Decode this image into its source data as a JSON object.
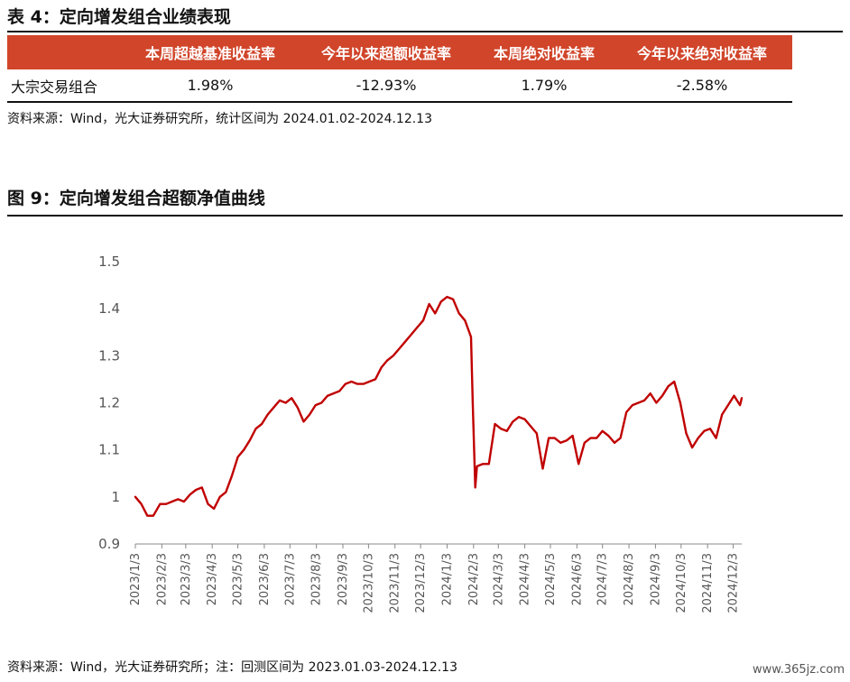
{
  "table": {
    "title": "表 4：定向增发组合业绩表现",
    "headers": [
      "",
      "本周超越基准收益率",
      "今年以来超额收益率",
      "本周绝对收益率",
      "今年以来绝对收益率"
    ],
    "rows": [
      [
        "大宗交易组合",
        "1.98%",
        "-12.93%",
        "1.79%",
        "-2.58%"
      ]
    ],
    "source": "资料来源：Wind，光大证券研究所，统计区间为 2024.01.02-2024.12.13"
  },
  "figure": {
    "title": "图 9：定向增发组合超额净值曲线",
    "source": "资料来源：Wind，光大证券研究所；注：回测区间为 2023.01.03-2024.12.13"
  },
  "watermark": "www.365jz.com",
  "colors": {
    "header_bg": "#d1452a",
    "line": "#c00000",
    "axis": "#888888"
  },
  "chart_data": {
    "type": "line",
    "title": "",
    "xlabel": "",
    "ylabel": "",
    "ylim": [
      0.9,
      1.5
    ],
    "yticks": [
      0.9,
      1,
      1.1,
      1.2,
      1.3,
      1.4,
      1.5
    ],
    "ytick_labels": [
      "0.9",
      "1",
      "1.1",
      "1.2",
      "1.3",
      "1.4",
      "1.5"
    ],
    "x_tick_labels": [
      "2023/1/3",
      "2023/2/3",
      "2023/3/3",
      "2023/4/3",
      "2023/5/3",
      "2023/6/3",
      "2023/7/3",
      "2023/8/3",
      "2023/9/3",
      "2023/10/3",
      "2023/11/3",
      "2023/12/3",
      "2024/1/3",
      "2024/2/3",
      "2024/3/3",
      "2024/4/3",
      "2024/5/3",
      "2024/6/3",
      "2024/7/3",
      "2024/8/3",
      "2024/9/3",
      "2024/10/3",
      "2024/11/3",
      "2024/12/3"
    ],
    "grid": false,
    "series": [
      {
        "x": [
          "2023/1/3",
          "2023/1/10",
          "2023/1/17",
          "2023/1/24",
          "2023/2/1",
          "2023/2/8",
          "2023/2/15",
          "2023/2/22",
          "2023/3/1",
          "2023/3/8",
          "2023/3/15",
          "2023/3/22",
          "2023/3/29",
          "2023/4/5",
          "2023/4/12",
          "2023/4/19",
          "2023/4/26",
          "2023/5/3",
          "2023/5/10",
          "2023/5/17",
          "2023/5/24",
          "2023/5/31",
          "2023/6/7",
          "2023/6/14",
          "2023/6/21",
          "2023/6/28",
          "2023/7/5",
          "2023/7/12",
          "2023/7/19",
          "2023/7/26",
          "2023/8/2",
          "2023/8/9",
          "2023/8/16",
          "2023/8/23",
          "2023/8/30",
          "2023/9/6",
          "2023/9/13",
          "2023/9/20",
          "2023/9/27",
          "2023/10/4",
          "2023/10/11",
          "2023/10/18",
          "2023/10/25",
          "2023/11/1",
          "2023/11/8",
          "2023/11/15",
          "2023/11/22",
          "2023/11/29",
          "2023/12/6",
          "2023/12/13",
          "2023/12/20",
          "2023/12/27",
          "2024/1/3",
          "2024/1/10",
          "2024/1/17",
          "2024/1/24",
          "2024/1/31",
          "2024/2/2",
          "2024/2/5",
          "2024/2/7",
          "2024/2/14",
          "2024/2/21",
          "2024/2/28",
          "2024/3/6",
          "2024/3/13",
          "2024/3/20",
          "2024/3/27",
          "2024/4/3",
          "2024/4/10",
          "2024/4/17",
          "2024/4/24",
          "2024/5/1",
          "2024/5/8",
          "2024/5/15",
          "2024/5/22",
          "2024/5/29",
          "2024/6/5",
          "2024/6/12",
          "2024/6/19",
          "2024/6/26",
          "2024/7/3",
          "2024/7/10",
          "2024/7/17",
          "2024/7/24",
          "2024/7/31",
          "2024/8/7",
          "2024/8/14",
          "2024/8/21",
          "2024/8/28",
          "2024/9/4",
          "2024/9/11",
          "2024/9/18",
          "2024/9/25",
          "2024/10/2",
          "2024/10/9",
          "2024/10/16",
          "2024/10/23",
          "2024/10/30",
          "2024/11/6",
          "2024/11/13",
          "2024/11/20",
          "2024/11/27",
          "2024/12/4",
          "2024/12/11",
          "2024/12/13"
        ],
        "y": [
          1.0,
          0.985,
          0.96,
          0.96,
          0.985,
          0.985,
          0.99,
          0.995,
          0.99,
          1.005,
          1.015,
          1.02,
          0.985,
          0.975,
          1.0,
          1.01,
          1.045,
          1.085,
          1.1,
          1.12,
          1.145,
          1.155,
          1.175,
          1.19,
          1.205,
          1.2,
          1.21,
          1.19,
          1.16,
          1.175,
          1.195,
          1.2,
          1.215,
          1.22,
          1.225,
          1.24,
          1.245,
          1.24,
          1.24,
          1.245,
          1.25,
          1.275,
          1.29,
          1.3,
          1.315,
          1.33,
          1.345,
          1.36,
          1.375,
          1.41,
          1.39,
          1.415,
          1.425,
          1.42,
          1.39,
          1.375,
          1.34,
          1.2,
          1.02,
          1.065,
          1.07,
          1.07,
          1.155,
          1.145,
          1.14,
          1.16,
          1.17,
          1.165,
          1.15,
          1.135,
          1.06,
          1.125,
          1.125,
          1.115,
          1.12,
          1.13,
          1.07,
          1.115,
          1.125,
          1.125,
          1.14,
          1.13,
          1.115,
          1.125,
          1.18,
          1.195,
          1.2,
          1.205,
          1.22,
          1.2,
          1.215,
          1.235,
          1.245,
          1.2,
          1.135,
          1.105,
          1.125,
          1.14,
          1.145,
          1.125,
          1.175,
          1.195,
          1.215,
          1.195,
          1.21
        ]
      }
    ]
  }
}
